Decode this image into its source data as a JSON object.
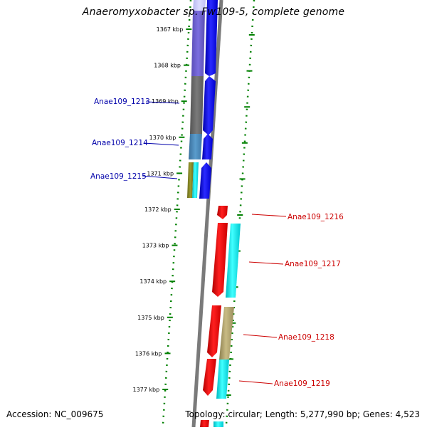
{
  "title": "Anaeromyxobacter sp. Fw109-5, complete genome",
  "footer": {
    "accession": "Accession: NC_009675",
    "summary": "Topology: circular; Length: 5,277,990 bp; Genes: 4,523"
  },
  "ruler": [
    "1367 kbp",
    "1368 kbp",
    "1369 kbp",
    "1370 kbp",
    "1371 kbp",
    "1372 kbp",
    "1373 kbp",
    "1374 kbp",
    "1375 kbp",
    "1376 kbp",
    "1377 kbp"
  ],
  "genes_left": [
    {
      "label": "Anae109_1213",
      "color": "#0000aa"
    },
    {
      "label": "Anae109_1214",
      "color": "#0000aa"
    },
    {
      "label": "Anae109_1215",
      "color": "#0000aa"
    }
  ],
  "genes_right": [
    {
      "label": "Anae109_1216",
      "color": "#cc0000"
    },
    {
      "label": "Anae109_1217",
      "color": "#cc0000"
    },
    {
      "label": "Anae109_1218",
      "color": "#cc0000"
    },
    {
      "label": "Anae109_1219",
      "color": "#cc0000"
    }
  ],
  "colors": {
    "forward_strand": "#0000ee",
    "reverse_strand": "#ee0000",
    "cyan_track": "#00e5ee",
    "khaki_track": "#b5a870",
    "gray_track": "#666666",
    "purple_track": "#6a5acd",
    "steelblue_track": "#4682b4",
    "backbone": "#808080",
    "ruler_ticks": "#008000"
  }
}
